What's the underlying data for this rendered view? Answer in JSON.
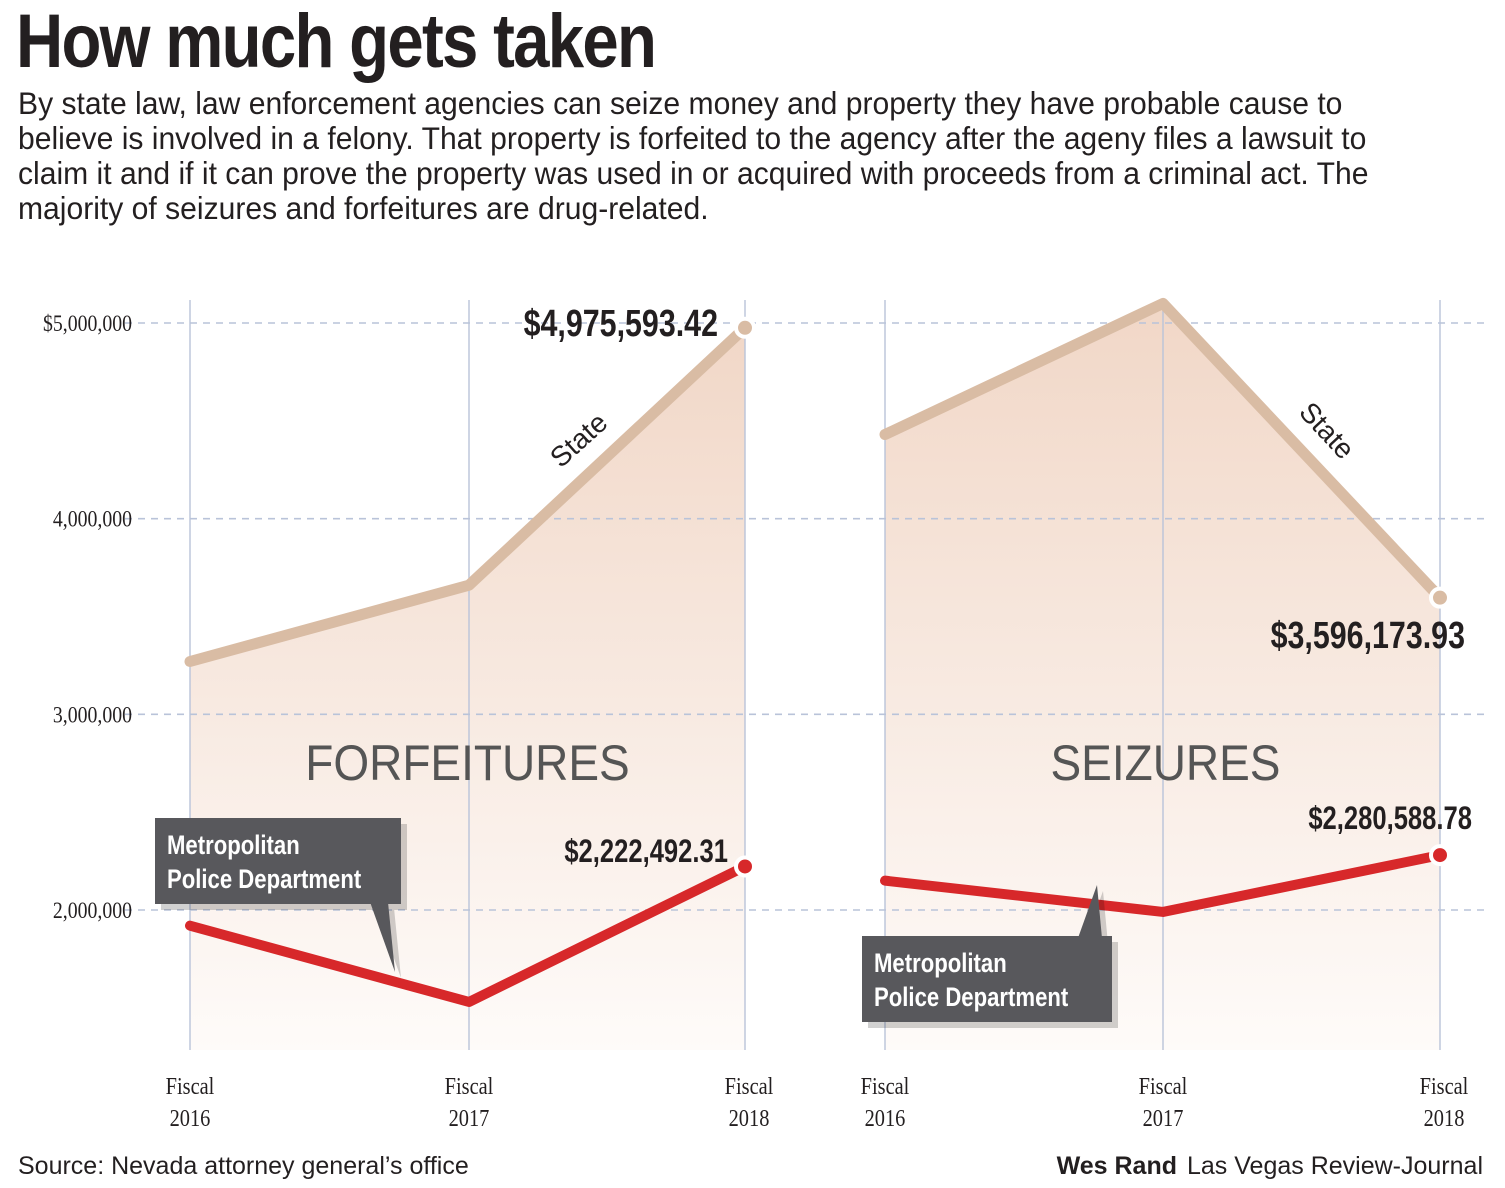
{
  "headline": "How much gets taken",
  "intro": "By state law, law enforcement agencies can seize money and property they have probable cause to believe is involved in a felony. That property is forfeited to the agency after the ageny files a lawsuit to claim it and if it can prove the property was used in or acquired with proceeds from a criminal act. The majority of seizures and forfeitures are drug-related.",
  "footer": {
    "source": "Source: Nevada attorney general’s office",
    "author": "Wes Rand",
    "publication": "Las Vegas Review-Journal"
  },
  "colors": {
    "state_line": "#d9bca4",
    "metro_line": "#d7282a",
    "area_top": "#f1d7c7",
    "area_bottom": "#fefbf9",
    "grid": "#b9c3d9",
    "callout_bg": "#58595b"
  },
  "chart_data": [
    {
      "type": "line",
      "title": "FORFEITURES",
      "categories": [
        "Fiscal\n2016",
        "Fiscal\n2017",
        "Fiscal\n2018"
      ],
      "ylim": [
        1300000,
        5100000
      ],
      "yticks": [
        {
          "value": 5000000,
          "label": "$5,000,000"
        },
        {
          "value": 4000000,
          "label": "4,000,000"
        },
        {
          "value": 3000000,
          "label": "3,000,000"
        },
        {
          "value": 2000000,
          "label": "2,000,000"
        }
      ],
      "grid": "horizontal dashed",
      "series": [
        {
          "name": "State",
          "values": [
            3270000,
            3660000,
            4975593.42
          ],
          "end_label": "$4,975,593.42"
        },
        {
          "name": "Metropolitan Police Department",
          "values": [
            1920000,
            1530000,
            2222492.31
          ],
          "end_label": "$2,222,492.31"
        }
      ]
    },
    {
      "type": "line",
      "title": "SEIZURES",
      "categories": [
        "Fiscal\n2016",
        "Fiscal\n2017",
        "Fiscal\n2018"
      ],
      "ylim": [
        1300000,
        5100000
      ],
      "grid": "horizontal dashed",
      "series": [
        {
          "name": "State",
          "values": [
            4430000,
            5100000,
            3596173.93
          ],
          "end_label": "$3,596,173.93"
        },
        {
          "name": "Metropolitan Police Department",
          "values": [
            2150000,
            1990000,
            2280588.78
          ],
          "end_label": "$2,280,588.78"
        }
      ]
    }
  ]
}
